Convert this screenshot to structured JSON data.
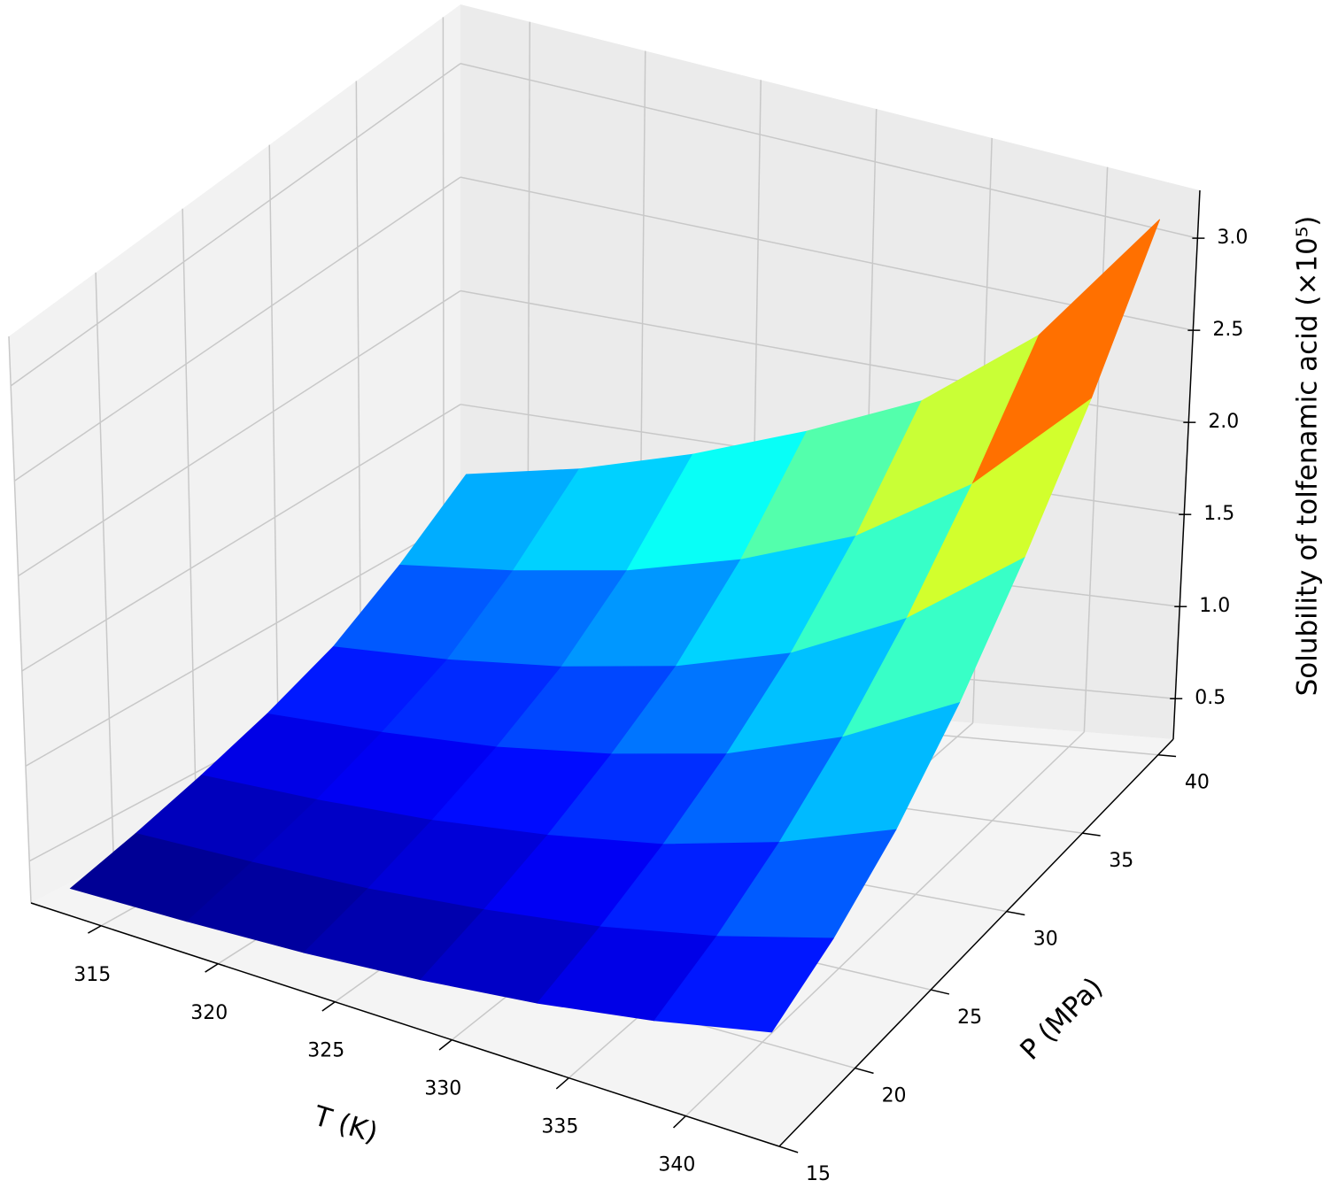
{
  "chart_data": {
    "type": "surface",
    "x_label": "T (K)",
    "y_label": "P (MPa)",
    "z_label": "Solubility of tolfenamic acid (×10⁵)",
    "x": [
      313,
      318,
      323,
      328,
      333,
      338,
      343
    ],
    "y": [
      16,
      20,
      24,
      28,
      32,
      36,
      40
    ],
    "z": [
      [
        0.35,
        0.37,
        0.4,
        0.45,
        0.52,
        0.62,
        0.75
      ],
      [
        0.45,
        0.47,
        0.5,
        0.56,
        0.64,
        0.76,
        0.92
      ],
      [
        0.56,
        0.58,
        0.62,
        0.69,
        0.79,
        0.95,
        1.17
      ],
      [
        0.68,
        0.71,
        0.76,
        0.85,
        0.98,
        1.2,
        1.52
      ],
      [
        0.82,
        0.86,
        0.93,
        1.04,
        1.22,
        1.52,
        1.97
      ],
      [
        1.02,
        1.08,
        1.17,
        1.32,
        1.54,
        1.92,
        2.5
      ],
      [
        1.25,
        1.35,
        1.5,
        1.7,
        1.95,
        2.4,
        3.15
      ]
    ],
    "xlim": [
      312,
      344
    ],
    "ylim": [
      15,
      41
    ],
    "zlim": [
      0.28,
      3.26
    ],
    "xticks": [
      315,
      320,
      325,
      330,
      335,
      340
    ],
    "yticks": [
      15,
      20,
      25,
      30,
      35,
      40
    ],
    "zticks": [
      0.5,
      {
        "value": 1.0,
        "label": "1.0"
      },
      1.5,
      {
        "value": 2.0,
        "label": "2.0"
      },
      2.5,
      {
        "value": 3.0,
        "label": "3.0"
      }
    ],
    "colormap": "jet",
    "grid": true
  }
}
